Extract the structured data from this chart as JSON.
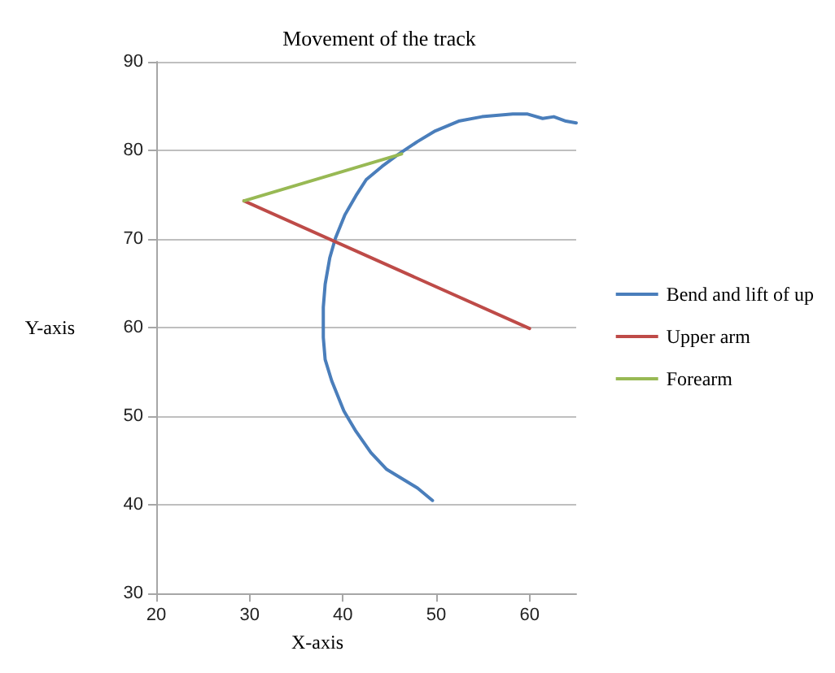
{
  "chart_data": {
    "type": "line",
    "title": "Movement of the track",
    "xlabel": "X-axis",
    "ylabel": "Y-axis",
    "xlim": [
      20,
      65
    ],
    "xticks": [
      20,
      30,
      40,
      50,
      60
    ],
    "ylim": [
      30,
      90
    ],
    "yticks": [
      30,
      40,
      50,
      60,
      70,
      80,
      90
    ],
    "grid": "y",
    "legend": "right",
    "marker": "none",
    "line_style": "solid",
    "series": [
      {
        "name": "Bend and lift of up",
        "color": "#4a7ebb",
        "x": [
          49.6,
          48,
          44.7,
          43,
          41.4,
          40.1,
          38.8,
          38.1,
          37.9,
          37.9,
          38.1,
          38.6,
          39.2,
          40.2,
          41.4,
          42.5,
          44.2,
          46,
          48,
          49.9,
          52.4,
          54.9,
          58.2,
          59.8,
          61.4,
          62.6,
          63.9,
          65
        ],
        "values": [
          40.5,
          41.9,
          44,
          45.9,
          48.3,
          50.6,
          54,
          56.4,
          58.9,
          62.3,
          64.9,
          67.9,
          70.1,
          72.7,
          74.9,
          76.7,
          78.2,
          79.6,
          81,
          82.2,
          83.3,
          83.8,
          84.1,
          84.1,
          83.6,
          83.8,
          83.3,
          83.1
        ]
      },
      {
        "name": "Upper arm",
        "color": "#be4b48",
        "x": [
          29.4,
          60
        ],
        "values": [
          74.3,
          59.9
        ]
      },
      {
        "name": "Forearm",
        "color": "#98b954",
        "x": [
          29.4,
          46.3
        ],
        "values": [
          74.3,
          79.6
        ]
      }
    ]
  }
}
